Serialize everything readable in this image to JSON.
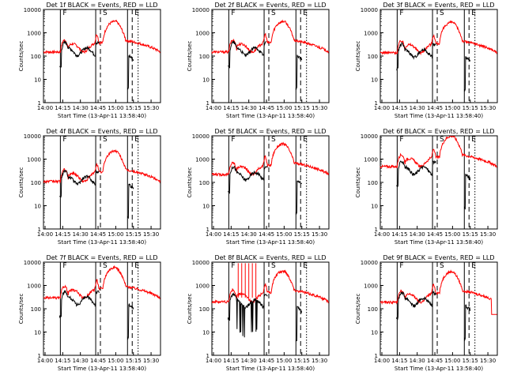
{
  "layout": {
    "rows": 3,
    "cols": 3
  },
  "common": {
    "xlabel": "Start Time (13-Apr-11 13:58:40)",
    "ylabel": "Counts/sec",
    "x_tick_labels": [
      "14:00",
      "14:15",
      "14:30",
      "14:45",
      "15:00",
      "15:15",
      "15:30"
    ],
    "y_tick_labels": [
      "1",
      "10",
      "100",
      "1000",
      "10000"
    ],
    "xlim": [
      "13:58:40",
      "15:38:00"
    ],
    "ylim": [
      1,
      10000
    ],
    "y_scale": "log",
    "markers": [
      {
        "label": "F",
        "time": "14:13",
        "style": "solid"
      },
      {
        "label": "",
        "time": "14:43",
        "style": "solid"
      },
      {
        "label": "S",
        "time": "14:47",
        "style": "dashed"
      },
      {
        "label": "",
        "time": "15:10",
        "style": "solid"
      },
      {
        "label": "E",
        "time": "15:14",
        "style": "dashed"
      },
      {
        "label": "",
        "time": "15:19",
        "style": "dotted"
      }
    ],
    "colors": {
      "events": "#000000",
      "lld": "#ff0000",
      "axes": "#000000"
    }
  },
  "chart_data": [
    {
      "type": "line",
      "title": "Det 1f BLACK = Events, RED = LLD",
      "red_base": 150,
      "black_scale": 0.55,
      "gap": false
    },
    {
      "type": "line",
      "title": "Det 2f BLACK = Events, RED = LLD",
      "red_base": 150,
      "black_scale": 0.55,
      "gap": true
    },
    {
      "type": "line",
      "title": "Det 3f BLACK = Events, RED = LLD",
      "red_base": 140,
      "black_scale": 0.5,
      "gap": false
    },
    {
      "type": "line",
      "title": "Det 4f BLACK = Events, RED = LLD",
      "red_base": 110,
      "black_scale": 0.6,
      "gap": false
    },
    {
      "type": "line",
      "title": "Det 5f BLACK = Events, RED = LLD",
      "red_base": 220,
      "black_scale": 0.45,
      "gap": false
    },
    {
      "type": "line",
      "title": "Det 6f BLACK = Events, RED = LLD",
      "red_base": 480,
      "black_scale": 0.35,
      "gap": false
    },
    {
      "type": "line",
      "title": "Det 7f BLACK = Events, RED = LLD",
      "red_base": 290,
      "black_scale": 0.4,
      "gap": false
    },
    {
      "type": "line",
      "title": "Det 8f BLACK = Events, RED = LLD",
      "red_base": 200,
      "black_scale": 0.45,
      "gap": false,
      "spikes": [
        "14:21",
        "14:24",
        "14:27",
        "14:30",
        "14:33",
        "14:36"
      ]
    },
    {
      "type": "line",
      "title": "Det 9f BLACK = Events, RED = LLD",
      "red_base": 190,
      "black_scale": 0.55,
      "gap": false,
      "drop": "15:33"
    }
  ]
}
